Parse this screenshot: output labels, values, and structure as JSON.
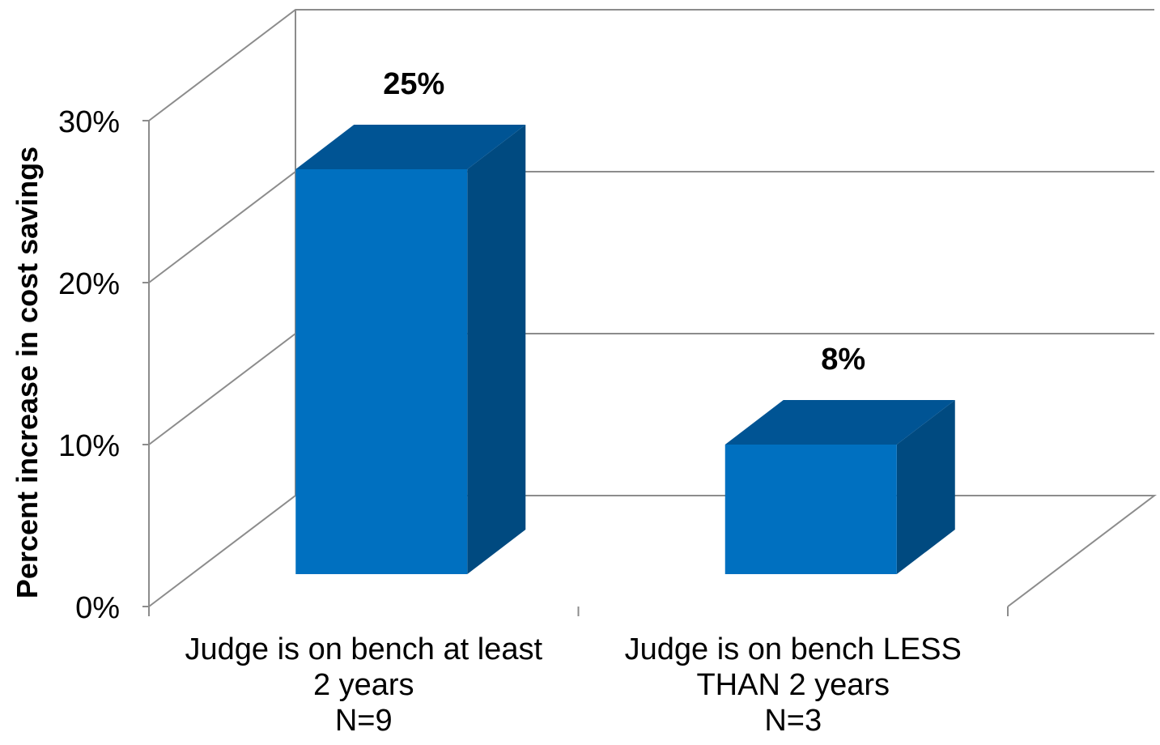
{
  "chart_data": {
    "type": "bar",
    "style": "3d-column",
    "categories": [
      [
        "Judge is on bench at least",
        "2 years",
        "N=9"
      ],
      [
        "Judge is on bench LESS",
        "THAN 2 years",
        "N=3"
      ]
    ],
    "values": [
      25,
      8
    ],
    "data_labels": [
      "25%",
      "8%"
    ],
    "title": "",
    "xlabel": "",
    "ylabel": "Percent increase in cost savings",
    "ylim": [
      0,
      30
    ],
    "yticks": [
      "0%",
      "10%",
      "20%",
      "30%"
    ],
    "ytick_values": [
      0,
      10,
      20,
      30
    ],
    "grid": true,
    "legend": "none",
    "colors": {
      "bar_front": "#0070C0",
      "bar_top": "#005494",
      "bar_side": "#004A80",
      "grid": "#8C8C8C"
    }
  }
}
